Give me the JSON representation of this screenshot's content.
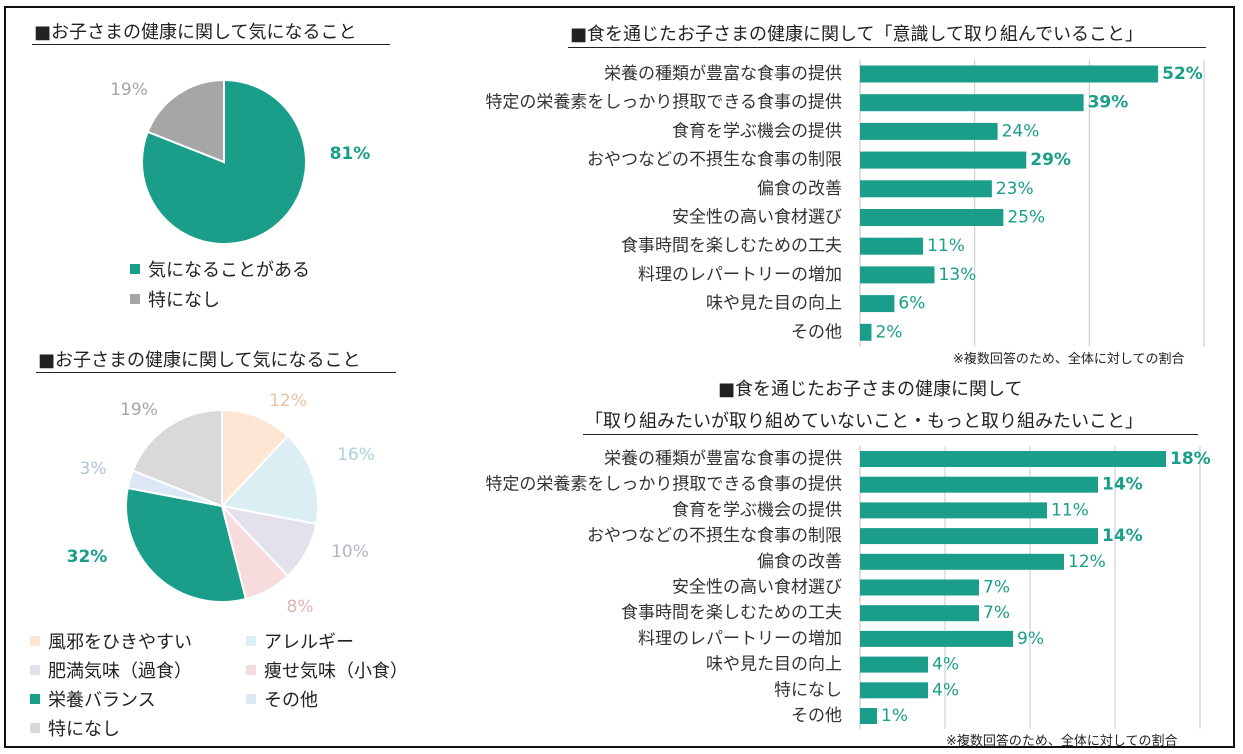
{
  "colors": {
    "teal": "#1a9e8a",
    "gray": "#a6a6a6",
    "peach": "#fde6d4",
    "lightblue": "#dbeef3",
    "lavender": "#e4e0ec",
    "pink": "#f6dcdc",
    "paleblue": "#dce8f5",
    "lightgray": "#d9d9d9"
  },
  "panel_pie1": {
    "title": "■お子さまの健康に関して気になること"
  },
  "panel_pie2": {
    "title": "■お子さまの健康に関して気になること"
  },
  "panel_bar1": {
    "title": "■食を通じたお子さまの健康に関して「意識して取り組んでいること」",
    "note": "※複数回答のため、全体に対しての割合"
  },
  "panel_bar2": {
    "title_line1": "■食を通じたお子さまの健康に関して",
    "title_line2": "「取り組みたいが取り組めていないこと・もっと取り組みたいこと」",
    "note": "※複数回答のため、全体に対しての割合"
  },
  "chart_data": [
    {
      "type": "pie",
      "title": "■お子さまの健康に関して気になること",
      "categories": [
        "気になることがある",
        "特になし"
      ],
      "values": [
        81,
        19
      ],
      "labels": [
        "81%",
        "19%"
      ],
      "colors": [
        "#1a9e8a",
        "#a6a6a6"
      ],
      "bold": [
        true,
        false
      ],
      "legend_position": "bottom"
    },
    {
      "type": "pie",
      "title": "■お子さまの健康に関して気になること",
      "categories": [
        "風邪をひきやすい",
        "アレルギー",
        "肥満気味（過食）",
        "痩せ気味（小食）",
        "栄養バランス",
        "その他",
        "特になし"
      ],
      "values": [
        12,
        16,
        10,
        8,
        32,
        3,
        19
      ],
      "labels": [
        "12%",
        "16%",
        "10%",
        "8%",
        "32%",
        "3%",
        "19%"
      ],
      "colors": [
        "#fde6d4",
        "#dbeef3",
        "#e4e0ec",
        "#f6dcdc",
        "#1a9e8a",
        "#dce8f5",
        "#d9d9d9"
      ],
      "label_colors": [
        "#e8c4a4",
        "#a8d2de",
        "#b7b3bf",
        "#e3b4b4",
        "#1a9e8a",
        "#b3c3d6",
        "#a6a6a6"
      ],
      "bold": [
        false,
        false,
        false,
        false,
        true,
        false,
        false
      ],
      "legend_position": "bottom"
    },
    {
      "type": "bar",
      "orientation": "horizontal",
      "title": "■食を通じたお子さまの健康に関して「意識して取り組んでいること」",
      "categories": [
        "栄養の種類が豊富な食事の提供",
        "特定の栄養素をしっかり摂取できる食事の提供",
        "食育を学ぶ機会の提供",
        "おやつなどの不摂生な食事の制限",
        "偏食の改善",
        "安全性の高い食材選び",
        "食事時間を楽しむための工夫",
        "料理のレパートリーの増加",
        "味や見た目の向上",
        "その他"
      ],
      "values": [
        52,
        39,
        24,
        29,
        23,
        25,
        11,
        13,
        6,
        2
      ],
      "labels": [
        "52%",
        "39%",
        "24%",
        "29%",
        "23%",
        "25%",
        "11%",
        "13%",
        "6%",
        "2%"
      ],
      "bold": [
        true,
        true,
        false,
        true,
        false,
        false,
        false,
        false,
        false,
        false
      ],
      "xlim": [
        0,
        60
      ],
      "grid": true
    },
    {
      "type": "bar",
      "orientation": "horizontal",
      "title": "■食を通じたお子さまの健康に関して「取り組みたいが取り組めていないこと・もっと取り組みたいこと」",
      "categories": [
        "栄養の種類が豊富な食事の提供",
        "特定の栄養素をしっかり摂取できる食事の提供",
        "食育を学ぶ機会の提供",
        "おやつなどの不摂生な食事の制限",
        "偏食の改善",
        "安全性の高い食材選び",
        "食事時間を楽しむための工夫",
        "料理のレパートリーの増加",
        "味や見た目の向上",
        "特になし",
        "その他"
      ],
      "values": [
        18,
        14,
        11,
        14,
        12,
        7,
        7,
        9,
        4,
        4,
        1
      ],
      "labels": [
        "18%",
        "14%",
        "11%",
        "14%",
        "12%",
        "7%",
        "7%",
        "9%",
        "4%",
        "4%",
        "1%"
      ],
      "bold": [
        true,
        true,
        false,
        true,
        false,
        false,
        false,
        false,
        false,
        false,
        false
      ],
      "xlim": [
        0,
        20
      ],
      "grid": true
    }
  ]
}
